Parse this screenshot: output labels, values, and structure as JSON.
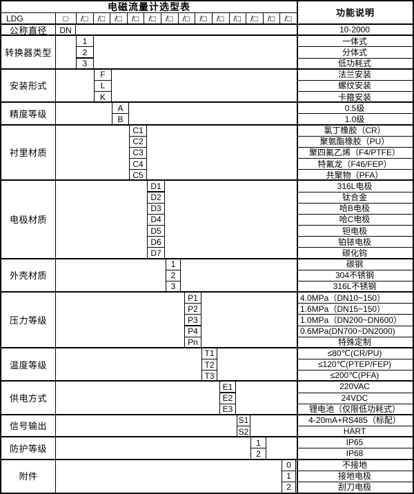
{
  "table": {
    "title": "电磁流量计选型表",
    "right_header": "功能说明",
    "model_row": {
      "prefix": "LDG",
      "first_slot": "□",
      "slot": "/□",
      "slot_count": 13
    },
    "sections": [
      {
        "category": "公称直径",
        "items": [
          {
            "code": "DN",
            "desc": "10-2000"
          }
        ]
      },
      {
        "category": "转换器类型",
        "items": [
          {
            "code": "1",
            "desc": "一体式"
          },
          {
            "code": "2",
            "desc": "分体式"
          },
          {
            "code": "3",
            "desc": "低功耗式"
          }
        ]
      },
      {
        "category": "安装形式",
        "items": [
          {
            "code": "F",
            "desc": "法兰安装"
          },
          {
            "code": "L",
            "desc": "螺纹安装"
          },
          {
            "code": "K",
            "desc": "卡箍安装"
          }
        ]
      },
      {
        "category": "精度等级",
        "items": [
          {
            "code": "A",
            "desc": "0.5级"
          },
          {
            "code": "B",
            "desc": "1.0级"
          }
        ]
      },
      {
        "category": "衬里材质",
        "items": [
          {
            "code": "C1",
            "desc": "氯丁橡胶（CR）"
          },
          {
            "code": "C2",
            "desc": "聚氨酯橡胶（PU）"
          },
          {
            "code": "C3",
            "desc": "聚四氟乙烯（F4/PTFE）"
          },
          {
            "code": "C4",
            "desc": "特氟龙（F46/FEP）"
          },
          {
            "code": "C5",
            "desc": "共聚物（PFA）"
          }
        ]
      },
      {
        "category": "电极材质",
        "items": [
          {
            "code": "D1",
            "desc": "316L电极"
          },
          {
            "code": "D2",
            "desc": "钛合金"
          },
          {
            "code": "D3",
            "desc": "哈B电极"
          },
          {
            "code": "D4",
            "desc": "哈C电极"
          },
          {
            "code": "D5",
            "desc": "钽电极"
          },
          {
            "code": "D6",
            "desc": "铂铱电极"
          },
          {
            "code": "D7",
            "desc": "碳化钨"
          }
        ]
      },
      {
        "category": "外壳材质",
        "items": [
          {
            "code": "1",
            "desc": "碳钢"
          },
          {
            "code": "2",
            "desc": "304不锈钢"
          },
          {
            "code": "3",
            "desc": "316L不锈钢"
          }
        ]
      },
      {
        "category": "压力等级",
        "items": [
          {
            "code": "P1",
            "desc": "4.0MPa（DN10~150）",
            "align": "left"
          },
          {
            "code": "P2",
            "desc": "1.6MPa（DN15~150）",
            "align": "left"
          },
          {
            "code": "P3",
            "desc": "1.0MPa（DN200~DN600）",
            "align": "left"
          },
          {
            "code": "P4",
            "desc": "0.6MPa(DN700~DN2000)",
            "align": "left"
          },
          {
            "code": "Pn",
            "desc": "特殊定制"
          }
        ]
      },
      {
        "category": "温度等级",
        "items": [
          {
            "code": "T1",
            "desc": "≤80℃(CR/PU)"
          },
          {
            "code": "T2",
            "desc": "≤120℃(PTEP/FEP)"
          },
          {
            "code": "T3",
            "desc": "≤200℃(PFA)"
          }
        ]
      },
      {
        "category": "供电方式",
        "items": [
          {
            "code": "E1",
            "desc": "220VAC"
          },
          {
            "code": "E2",
            "desc": "24VDC"
          },
          {
            "code": "E3",
            "desc": "锂电池（仅限低功耗式）"
          }
        ]
      },
      {
        "category": "信号输出",
        "items": [
          {
            "code": "S1",
            "desc": "4-20mA+RS485（标配）"
          },
          {
            "code": "S2",
            "desc": "HART"
          }
        ]
      },
      {
        "category": "防护等级",
        "items": [
          {
            "code": "1",
            "desc": "IP65"
          },
          {
            "code": "2",
            "desc": "IP68"
          }
        ]
      },
      {
        "category": "附件",
        "items": [
          {
            "code": "0",
            "desc": "不接地"
          },
          {
            "code": "1",
            "desc": "接地电极"
          },
          {
            "code": "2",
            "desc": "刮刀电极"
          }
        ]
      }
    ],
    "colors": {
      "border": "#000000",
      "background": "#ffffff",
      "text": "#000000"
    }
  }
}
